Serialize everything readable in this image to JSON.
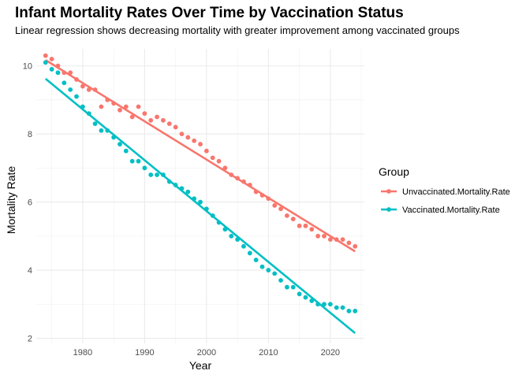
{
  "chart_data": {
    "type": "scatter",
    "title": "Infant Mortality Rates Over Time by Vaccination Status",
    "subtitle": "Linear regression shows decreasing mortality with greater improvement among vaccinated groups",
    "xlabel": "Year",
    "ylabel": "Mortality Rate",
    "xlim": [
      1972.5,
      2025.5
    ],
    "ylim": [
      1.85,
      10.5
    ],
    "xticks": [
      1980,
      1990,
      2000,
      2010,
      2020
    ],
    "yticks": [
      2,
      4,
      6,
      8,
      10
    ],
    "grid": true,
    "legend": {
      "title": "Group",
      "position": "right"
    },
    "x": [
      1974,
      1975,
      1976,
      1977,
      1978,
      1979,
      1980,
      1981,
      1982,
      1983,
      1984,
      1985,
      1986,
      1987,
      1988,
      1989,
      1990,
      1991,
      1992,
      1993,
      1994,
      1995,
      1996,
      1997,
      1998,
      1999,
      2000,
      2001,
      2002,
      2003,
      2004,
      2005,
      2006,
      2007,
      2008,
      2009,
      2010,
      2011,
      2012,
      2013,
      2014,
      2015,
      2016,
      2017,
      2018,
      2019,
      2020,
      2021,
      2022,
      2023,
      2024
    ],
    "series": [
      {
        "name": "Unvaccinated.Mortality.Rate",
        "color": "#F8766D",
        "values": [
          10.3,
          10.2,
          10.0,
          9.8,
          9.8,
          9.6,
          9.4,
          9.3,
          9.3,
          8.8,
          9.0,
          8.9,
          8.7,
          8.8,
          8.5,
          8.8,
          8.6,
          8.4,
          8.5,
          8.4,
          8.3,
          8.2,
          8.0,
          7.9,
          7.8,
          7.7,
          7.5,
          7.3,
          7.2,
          7.0,
          6.8,
          6.7,
          6.6,
          6.5,
          6.3,
          6.2,
          6.1,
          5.9,
          5.8,
          5.6,
          5.5,
          5.3,
          5.3,
          5.2,
          5.0,
          5.0,
          4.9,
          4.9,
          4.9,
          4.8,
          4.7
        ],
        "fit": {
          "start": [
            1974,
            10.17
          ],
          "end": [
            2024,
            4.55
          ]
        }
      },
      {
        "name": "Vaccinated.Mortality.Rate",
        "color": "#00BFC4",
        "values": [
          10.1,
          9.9,
          9.8,
          9.5,
          9.3,
          9.1,
          8.8,
          8.6,
          8.3,
          8.1,
          8.1,
          7.9,
          7.7,
          7.5,
          7.2,
          7.2,
          7.0,
          6.8,
          6.8,
          6.8,
          6.6,
          6.5,
          6.4,
          6.3,
          6.1,
          6.0,
          5.8,
          5.6,
          5.4,
          5.2,
          5.0,
          4.9,
          4.7,
          4.5,
          4.3,
          4.1,
          4.0,
          3.9,
          3.7,
          3.5,
          3.5,
          3.3,
          3.2,
          3.1,
          3.0,
          3.0,
          3.0,
          2.9,
          2.9,
          2.8,
          2.8
        ],
        "fit": {
          "start": [
            1974,
            9.62
          ],
          "end": [
            2024,
            2.15
          ]
        }
      }
    ]
  }
}
